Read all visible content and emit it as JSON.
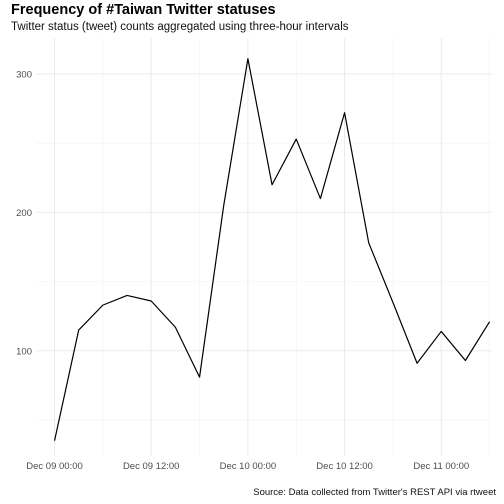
{
  "chart_data": {
    "type": "line",
    "title": "Frequency of #Taiwan Twitter statuses",
    "subtitle": "Twitter status (tweet) counts aggregated using three-hour intervals",
    "caption": "Source: Data collected from Twitter's REST API via rtweet",
    "xlabel": "",
    "ylabel": "",
    "x_ticks": [
      {
        "label": "Dec 09 00:00",
        "hours": 0
      },
      {
        "label": "Dec 09 12:00",
        "hours": 12
      },
      {
        "label": "Dec 10 00:00",
        "hours": 24
      },
      {
        "label": "Dec 10 12:00",
        "hours": 36
      },
      {
        "label": "Dec 11 00:00",
        "hours": 48
      }
    ],
    "y_ticks": [
      100,
      200,
      300
    ],
    "ylim": [
      24,
      326
    ],
    "xlim_hours": [
      -2.3,
      54.3
    ],
    "grid": true,
    "legend": "none",
    "line_color": "#000000",
    "series": [
      {
        "x_hours": [
          0,
          3,
          6,
          9,
          12,
          15,
          18,
          21,
          24,
          27,
          30,
          33,
          36,
          39,
          42,
          45,
          48,
          51,
          54
        ],
        "values": [
          35,
          115,
          133,
          140,
          136,
          117,
          81,
          205,
          311,
          220,
          253,
          210,
          272,
          178,
          135,
          91,
          114,
          93,
          121
        ]
      }
    ]
  }
}
